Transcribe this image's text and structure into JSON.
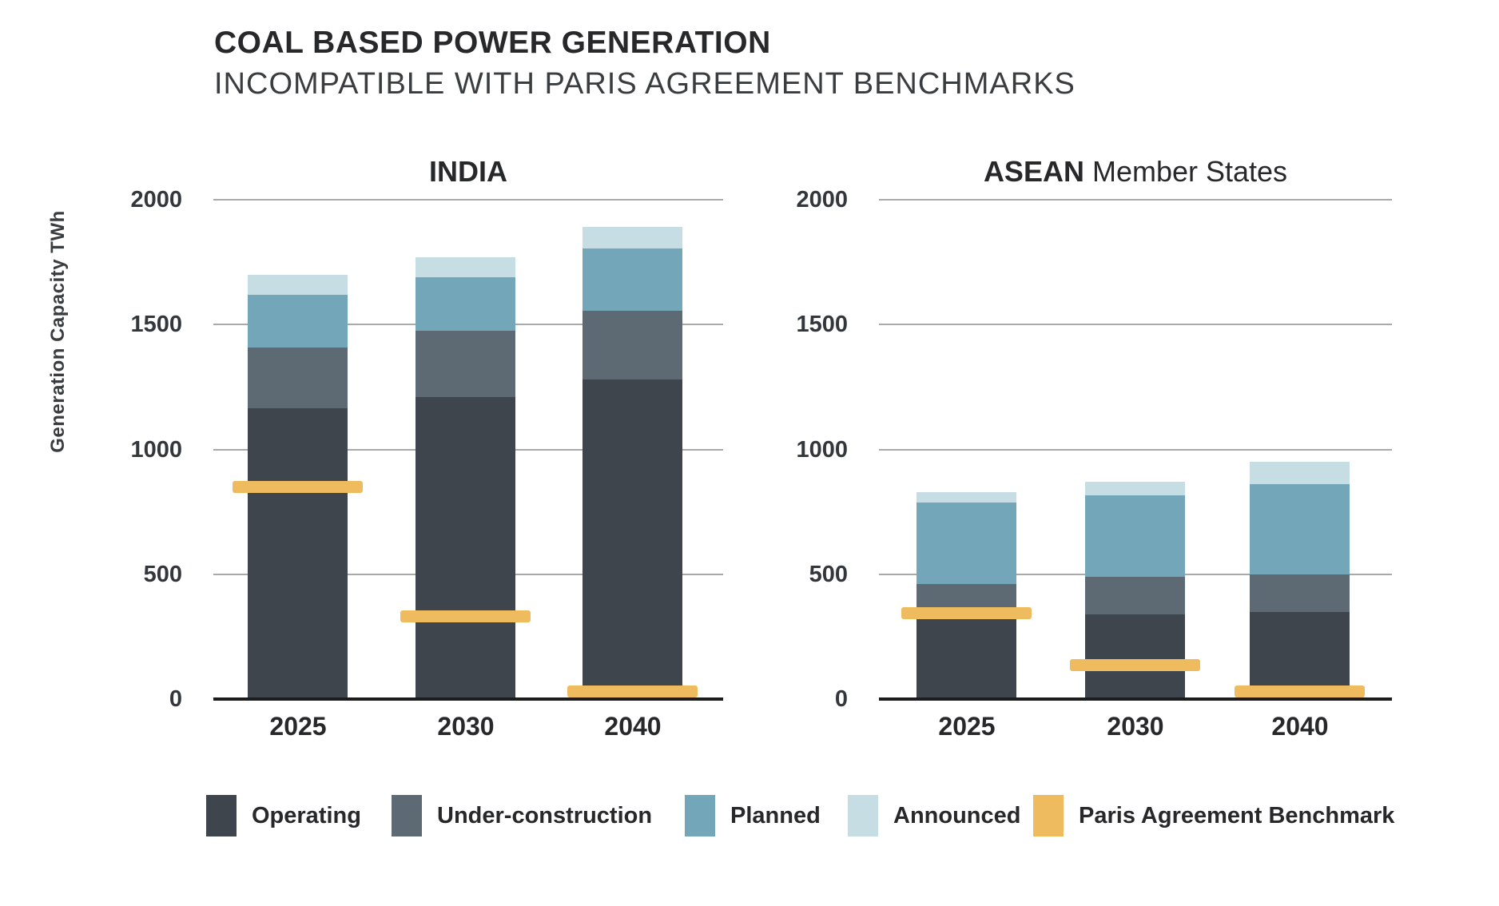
{
  "header": {
    "title": "COAL BASED POWER GENERATION",
    "subtitle": "INCOMPATIBLE WITH PARIS AGREEMENT BENCHMARKS"
  },
  "y_axis_label": "Generation Capacity TWh",
  "colors": {
    "operating": "#3f454c",
    "under_construction": "#5d6a74",
    "planned": "#72a6b8",
    "announced": "#c7dde4",
    "benchmark": "#efbb5f",
    "gridline": "#a9a9a9",
    "axis": "#1c1c1c",
    "title_text": "#26282a",
    "subtitle_text": "#3a3d40",
    "tick_text": "#33373b"
  },
  "chart_data": [
    {
      "type": "bar",
      "stacked": true,
      "slug": "india",
      "title": "INDIA",
      "title_bold": "INDIA",
      "title_rest": "",
      "categories": [
        "2025",
        "2030",
        "2040"
      ],
      "series": [
        {
          "name": "Operating",
          "color_key": "operating",
          "values": [
            1165,
            1210,
            1280
          ]
        },
        {
          "name": "Under-construction",
          "color_key": "under_construction",
          "values": [
            245,
            265,
            275
          ]
        },
        {
          "name": "Planned",
          "color_key": "planned",
          "values": [
            210,
            215,
            250
          ]
        },
        {
          "name": "Announced",
          "color_key": "announced",
          "values": [
            80,
            80,
            85
          ]
        }
      ],
      "totals": [
        1700,
        1770,
        1890
      ],
      "benchmark": {
        "name": "Paris Agreement Benchmark",
        "color_key": "benchmark",
        "values": [
          850,
          330,
          30
        ]
      },
      "ylabel": "Generation Capacity TWh",
      "yticks": [
        0,
        500,
        1000,
        1500,
        2000
      ],
      "ylim": [
        0,
        2000
      ],
      "grid": true,
      "legend_position": "bottom"
    },
    {
      "type": "bar",
      "stacked": true,
      "slug": "asean",
      "title": "ASEAN Member States",
      "title_bold": "ASEAN",
      "title_rest": " Member States",
      "categories": [
        "2025",
        "2030",
        "2040"
      ],
      "series": [
        {
          "name": "Operating",
          "color_key": "operating",
          "values": [
            320,
            340,
            350
          ]
        },
        {
          "name": "Under-construction",
          "color_key": "under_construction",
          "values": [
            140,
            150,
            150
          ]
        },
        {
          "name": "Planned",
          "color_key": "planned",
          "values": [
            330,
            325,
            360
          ]
        },
        {
          "name": "Announced",
          "color_key": "announced",
          "values": [
            40,
            55,
            90
          ]
        }
      ],
      "totals": [
        830,
        870,
        950
      ],
      "benchmark": {
        "name": "Paris Agreement Benchmark",
        "color_key": "benchmark",
        "values": [
          345,
          135,
          30
        ]
      },
      "ylabel": "Generation Capacity TWh",
      "yticks": [
        0,
        500,
        1000,
        1500,
        2000
      ],
      "ylim": [
        0,
        2000
      ],
      "grid": true,
      "legend_position": "bottom"
    }
  ],
  "legend": {
    "items": [
      {
        "label": "Operating",
        "color_key": "operating"
      },
      {
        "label": "Under-construction",
        "color_key": "under_construction"
      },
      {
        "label": "Planned",
        "color_key": "planned"
      },
      {
        "label": "Announced",
        "color_key": "announced"
      },
      {
        "label": "Paris Agreement Benchmark",
        "color_key": "benchmark"
      }
    ]
  }
}
